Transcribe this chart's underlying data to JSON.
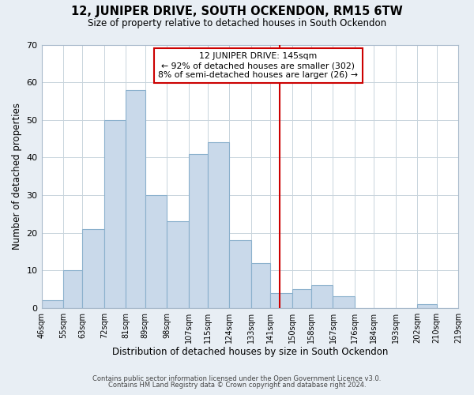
{
  "title1": "12, JUNIPER DRIVE, SOUTH OCKENDON, RM15 6TW",
  "title2": "Size of property relative to detached houses in South Ockendon",
  "xlabel": "Distribution of detached houses by size in South Ockendon",
  "ylabel": "Number of detached properties",
  "footer1": "Contains HM Land Registry data © Crown copyright and database right 2024.",
  "footer2": "Contains public sector information licensed under the Open Government Licence v3.0.",
  "bin_edges": [
    46,
    55,
    63,
    72,
    81,
    89,
    98,
    107,
    115,
    124,
    133,
    141,
    150,
    158,
    167,
    176,
    184,
    193,
    202,
    210,
    219
  ],
  "bar_heights": [
    2,
    10,
    21,
    50,
    58,
    30,
    23,
    41,
    44,
    18,
    12,
    4,
    5,
    6,
    3,
    0,
    0,
    0,
    1,
    0
  ],
  "bar_color": "#c9d9ea",
  "bar_edge_color": "#8ab0cc",
  "property_line_x": 145,
  "property_line_color": "#cc0000",
  "annotation_title": "12 JUNIPER DRIVE: 145sqm",
  "annotation_line1": "← 92% of detached houses are smaller (302)",
  "annotation_line2": "8% of semi-detached houses are larger (26) →",
  "annotation_box_color": "#ffffff",
  "annotation_box_edge": "#cc0000",
  "ylim": [
    0,
    70
  ],
  "yticks": [
    0,
    10,
    20,
    30,
    40,
    50,
    60,
    70
  ],
  "tick_labels": [
    "46sqm",
    "55sqm",
    "63sqm",
    "72sqm",
    "81sqm",
    "89sqm",
    "98sqm",
    "107sqm",
    "115sqm",
    "124sqm",
    "133sqm",
    "141sqm",
    "150sqm",
    "158sqm",
    "167sqm",
    "176sqm",
    "184sqm",
    "193sqm",
    "202sqm",
    "210sqm",
    "219sqm"
  ],
  "background_color": "#e8eef4",
  "plot_bg_color": "#ffffff",
  "grid_color": "#c8d4dc"
}
